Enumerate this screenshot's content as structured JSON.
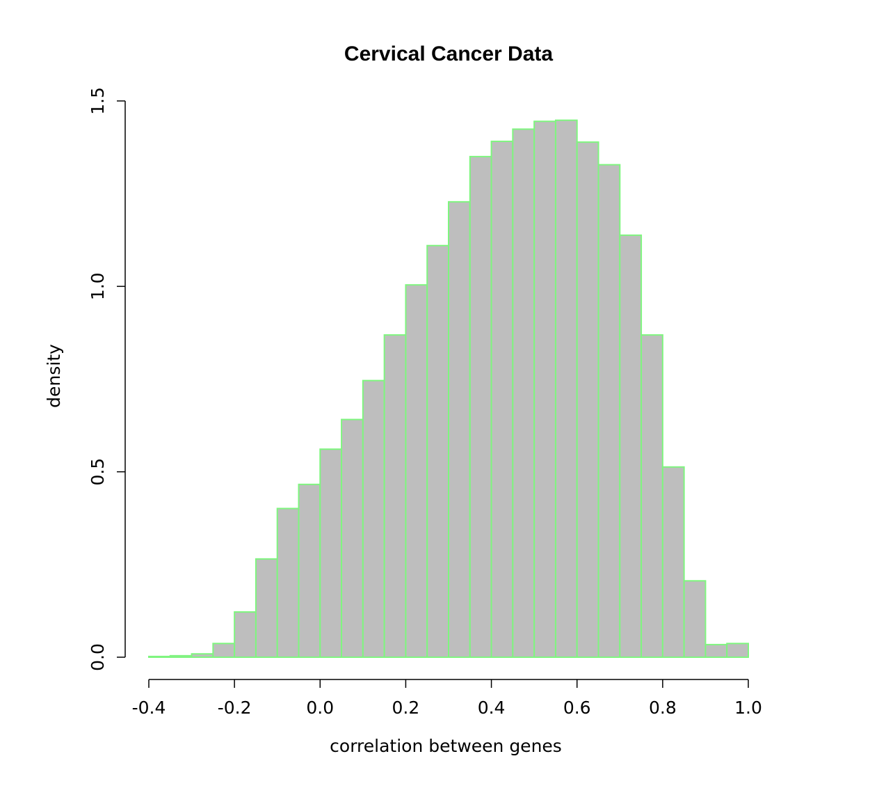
{
  "chart_data": {
    "type": "bar",
    "title": "Cervical Cancer Data",
    "xlabel": "correlation between genes",
    "ylabel": "density",
    "xlim": [
      -0.4,
      1.0
    ],
    "ylim": [
      0.0,
      1.5
    ],
    "x_ticks": [
      "-0.4",
      "-0.2",
      "0.0",
      "0.2",
      "0.4",
      "0.6",
      "0.8",
      "1.0"
    ],
    "y_ticks": [
      "0.0",
      "0.5",
      "1.0",
      "1.5"
    ],
    "bin_edges": [
      -0.4,
      -0.35,
      -0.3,
      -0.25,
      -0.2,
      -0.15,
      -0.1,
      -0.05,
      0.0,
      0.05,
      0.1,
      0.15,
      0.2,
      0.25,
      0.3,
      0.35,
      0.4,
      0.45,
      0.5,
      0.55,
      0.6,
      0.65,
      0.7,
      0.75,
      0.8,
      0.85,
      0.9,
      0.95,
      1.0
    ],
    "values": [
      0.002,
      0.004,
      0.009,
      0.037,
      0.122,
      0.265,
      0.401,
      0.466,
      0.561,
      0.641,
      0.746,
      0.869,
      1.004,
      1.11,
      1.228,
      1.35,
      1.391,
      1.424,
      1.445,
      1.448,
      1.389,
      1.328,
      1.138,
      0.869,
      0.513,
      0.206,
      0.034,
      0.037
    ],
    "grid": false,
    "bar_fill": "#bebebe",
    "bar_border": "#7ff57f"
  }
}
